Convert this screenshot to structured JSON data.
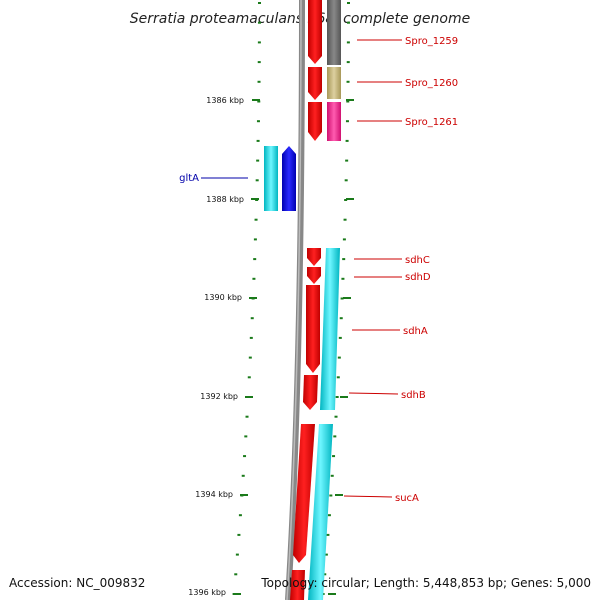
{
  "title": "Serratia proteamaculans 568, complete genome",
  "footer": {
    "accession": "Accession: NC_009832",
    "topology": "Topology: circular; Length: 5,448,853 bp; Genes: 5,000"
  },
  "ticks": [
    {
      "label": "1386 kbp"
    },
    {
      "label": "1388 kbp"
    },
    {
      "label": "1390 kbp"
    },
    {
      "label": "1392 kbp"
    },
    {
      "label": "1394 kbp"
    },
    {
      "label": "1396 kbp"
    }
  ],
  "gene_labels": [
    {
      "text": "Spro_1259"
    },
    {
      "text": "Spro_1260"
    },
    {
      "text": "Spro_1261"
    },
    {
      "text": "gltA"
    },
    {
      "text": "sdhC"
    },
    {
      "text": "sdhD"
    },
    {
      "text": "sdhA"
    },
    {
      "text": "sdhB"
    },
    {
      "text": "sucA"
    }
  ],
  "colors": {
    "cds": "#ff0000",
    "cog_gray": "#666666",
    "cog_olive": "#c8b878",
    "cog_magenta": "#ff1493",
    "cog_cyan": "#00e5ee",
    "cog_blue": "#0000ee",
    "backbone": "#888888",
    "tick": "#1a7a1a",
    "label_red": "#cc0000",
    "label_blue": "#0000aa"
  }
}
